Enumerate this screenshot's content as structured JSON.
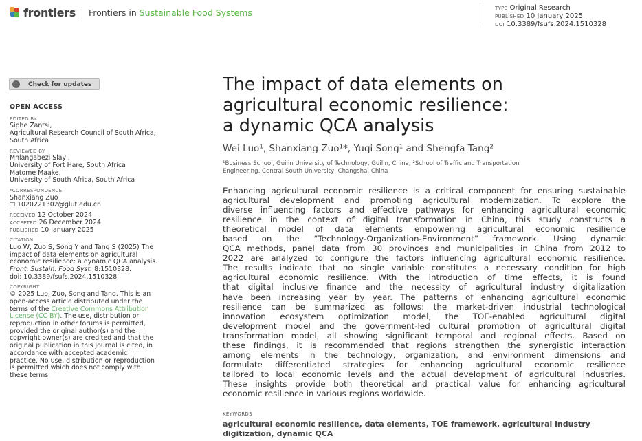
{
  "header": {
    "brand": "frontiers",
    "journal_prefix": "Frontiers in ",
    "journal_name": "Sustainable Food Systems",
    "journal_color": "#5ab544",
    "meta": [
      {
        "label": "TYPE",
        "value": "Original Research"
      },
      {
        "label": "PUBLISHED",
        "value": "10 January 2025"
      },
      {
        "label": "DOI",
        "value": "10.3389/fsufs.2024.1510328"
      }
    ]
  },
  "sidebar": {
    "check_updates": "Check for updates",
    "open_access": "OPEN ACCESS",
    "edited_by_label": "EDITED BY",
    "edited_by": [
      "Siphe Zantsi,",
      "Agricultural Research Council of South Africa,",
      "South Africa"
    ],
    "reviewed_by_label": "REVIEWED BY",
    "reviewed_by": [
      "Mhlangabezi Slayi,",
      "University of Fort Hare, South Africa",
      "Matome Maake,",
      "University of South Africa, South Africa"
    ],
    "correspondence_label": "*CORRESPONDENCE",
    "correspondence_name": "Shanxiang Zuo",
    "correspondence_email": "1020221302@glut.edu.cn",
    "dates": [
      {
        "label": "RECEIVED",
        "value": "12 October 2024"
      },
      {
        "label": "ACCEPTED",
        "value": "26 December 2024"
      },
      {
        "label": "PUBLISHED",
        "value": "10 January 2025"
      }
    ],
    "citation_label": "CITATION",
    "citation": [
      "Luo W, Zuo S, Song Y and Tang S (2025) The",
      "impact of data elements on agricultural",
      "economic resilience: a dynamic QCA analysis."
    ],
    "citation_journal": "Front. Sustain. Food Syst.",
    "citation_vol": " 8:1510328.",
    "citation_doi": "doi: 10.3389/fsufs.2024.1510328",
    "copyright_label": "COPYRIGHT",
    "copyright_1": [
      "© 2025 Luo, Zuo, Song and Tang. This is an",
      "open-access article distributed under the"
    ],
    "copyright_pre": "terms of the ",
    "license_link_1": "Creative Commons Attribution",
    "license_link_2": "License (CC BY)",
    "copyright_post": ". The use, distribution or",
    "copyright_2": [
      "reproduction in other forums is permitted,",
      "provided the original author(s) and the",
      "copyright owner(s) are credited and that the",
      "original publication in this journal is cited, in",
      "accordance with accepted academic",
      "practice. No use, distribution or reproduction",
      "is permitted which does not comply with",
      "these terms."
    ]
  },
  "article": {
    "title": [
      "The impact of data elements on",
      "agricultural economic resilience:",
      "a dynamic QCA analysis"
    ],
    "authors": "Wei Luo¹, Shanxiang Zuo¹*, Yuqi Song¹ and Shengfa Tang²",
    "affiliations": [
      "¹Business School, Guilin University of Technology, Guilin, China, ²School of Traffic and Transportation",
      "Engineering, Central South University, Changsha, China"
    ],
    "abstract": [
      "Enhancing agricultural economic resilience is a critical component for ensuring sustainable",
      "agricultural development and promoting agricultural modernization. To explore the",
      "diverse influencing factors and effective pathways for enhancing agricultural economic",
      "resilience in the context of digital transformation in China, this study constructs a",
      "theoretical model of data elements empowering agricultural economic resilience",
      "based on the “Technology-Organization-Environment” framework. Using dynamic",
      "QCA methods, panel data from 30 provinces and municipalities in China from 2012 to",
      "2022 are analyzed to configure the factors influencing agricultural economic resilience.",
      "The results indicate that no single variable constitutes a necessary condition for high",
      "agricultural economic resilience. With the introduction of time effects, it is found",
      "that digital inclusive finance and the necessity of agricultural industry digitalization",
      "have been increasing year by year. The patterns of enhancing agricultural economic",
      "resilience can be summarized as follows: the market-driven industrial technological",
      "innovation ecosystem optimization model, the TOE-enabled agricultural digital",
      "development model and the government-led cultural promotion of agricultural digital",
      "transformation model, all showing significant temporal and regional effects. Based on",
      "these findings, it is recommended that regions strengthen the synergistic interaction",
      "among elements in the technology, organization, and environment dimensions and",
      "formulate differentiated strategies for enhancing agricultural economic resilience",
      "tailored to local economic levels and the actual development of agricultural industries.",
      "These insights provide both theoretical and practical value for enhancing agricultural",
      "economic resilience in various regions worldwide."
    ],
    "keywords_label": "KEYWORDS",
    "keywords": [
      "agricultural economic resilience, data elements, TOE framework, agricultural industry",
      "digitization, dynamic QCA"
    ]
  }
}
